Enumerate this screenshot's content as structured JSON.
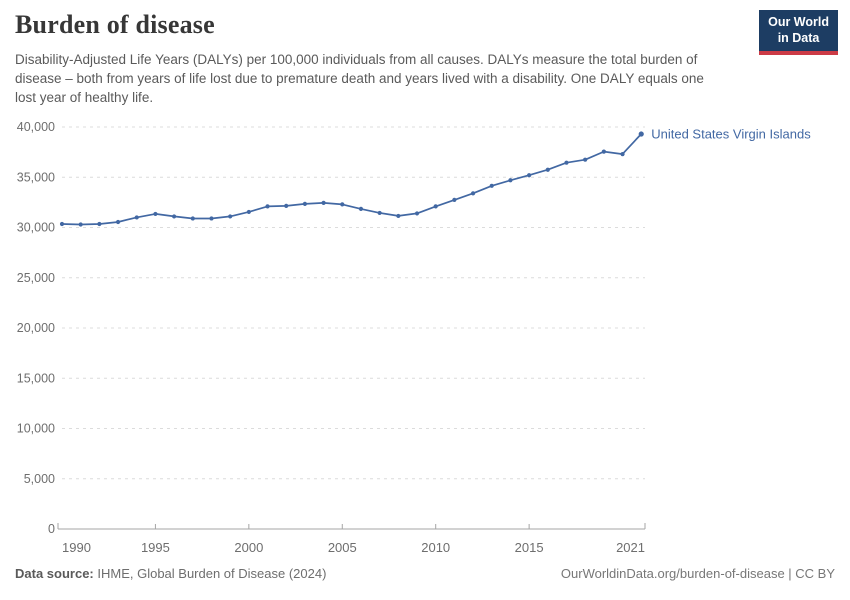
{
  "header": {
    "title": "Burden of disease",
    "subtitle": "Disability-Adjusted Life Years (DALYs) per 100,000 individuals from all causes. DALYs measure the total burden of disease – both from years of life lost due to premature death and years lived with a disability. One DALY equals one lost year of healthy life.",
    "logo": {
      "line1": "Our World",
      "line2": "in Data",
      "bg_color": "#1d3d63",
      "bar_color": "#cc3b46"
    }
  },
  "chart_data": {
    "type": "line",
    "title": "Burden of disease",
    "entity_label": "United States Virgin Islands",
    "x": [
      1990,
      1991,
      1992,
      1993,
      1994,
      1995,
      1996,
      1997,
      1998,
      1999,
      2000,
      2001,
      2002,
      2003,
      2004,
      2005,
      2006,
      2007,
      2008,
      2009,
      2010,
      2011,
      2012,
      2013,
      2014,
      2015,
      2016,
      2017,
      2018,
      2019,
      2020,
      2021
    ],
    "series": [
      {
        "name": "United States Virgin Islands",
        "values": [
          30350,
          30300,
          30350,
          30550,
          31000,
          31350,
          31100,
          30900,
          30900,
          31100,
          31550,
          32100,
          32150,
          32350,
          32450,
          32300,
          31850,
          31450,
          31150,
          31400,
          32100,
          32750,
          33400,
          34150,
          34700,
          35200,
          35750,
          36450,
          36750,
          37550,
          37300,
          39300
        ]
      }
    ],
    "ylim": [
      0,
      40000
    ],
    "yticks": [
      0,
      5000,
      10000,
      15000,
      20000,
      25000,
      30000,
      35000,
      40000
    ],
    "xticks": [
      1990,
      1995,
      2000,
      2005,
      2010,
      2015,
      2021
    ],
    "grid": "horizontal-dashed",
    "legend_position": "end-of-line",
    "line_color": "#4268a3"
  },
  "footer": {
    "source_label": "Data source:",
    "source_text": " IHME, Global Burden of Disease (2024)",
    "credit": "OurWorldinData.org/burden-of-disease | CC BY"
  }
}
